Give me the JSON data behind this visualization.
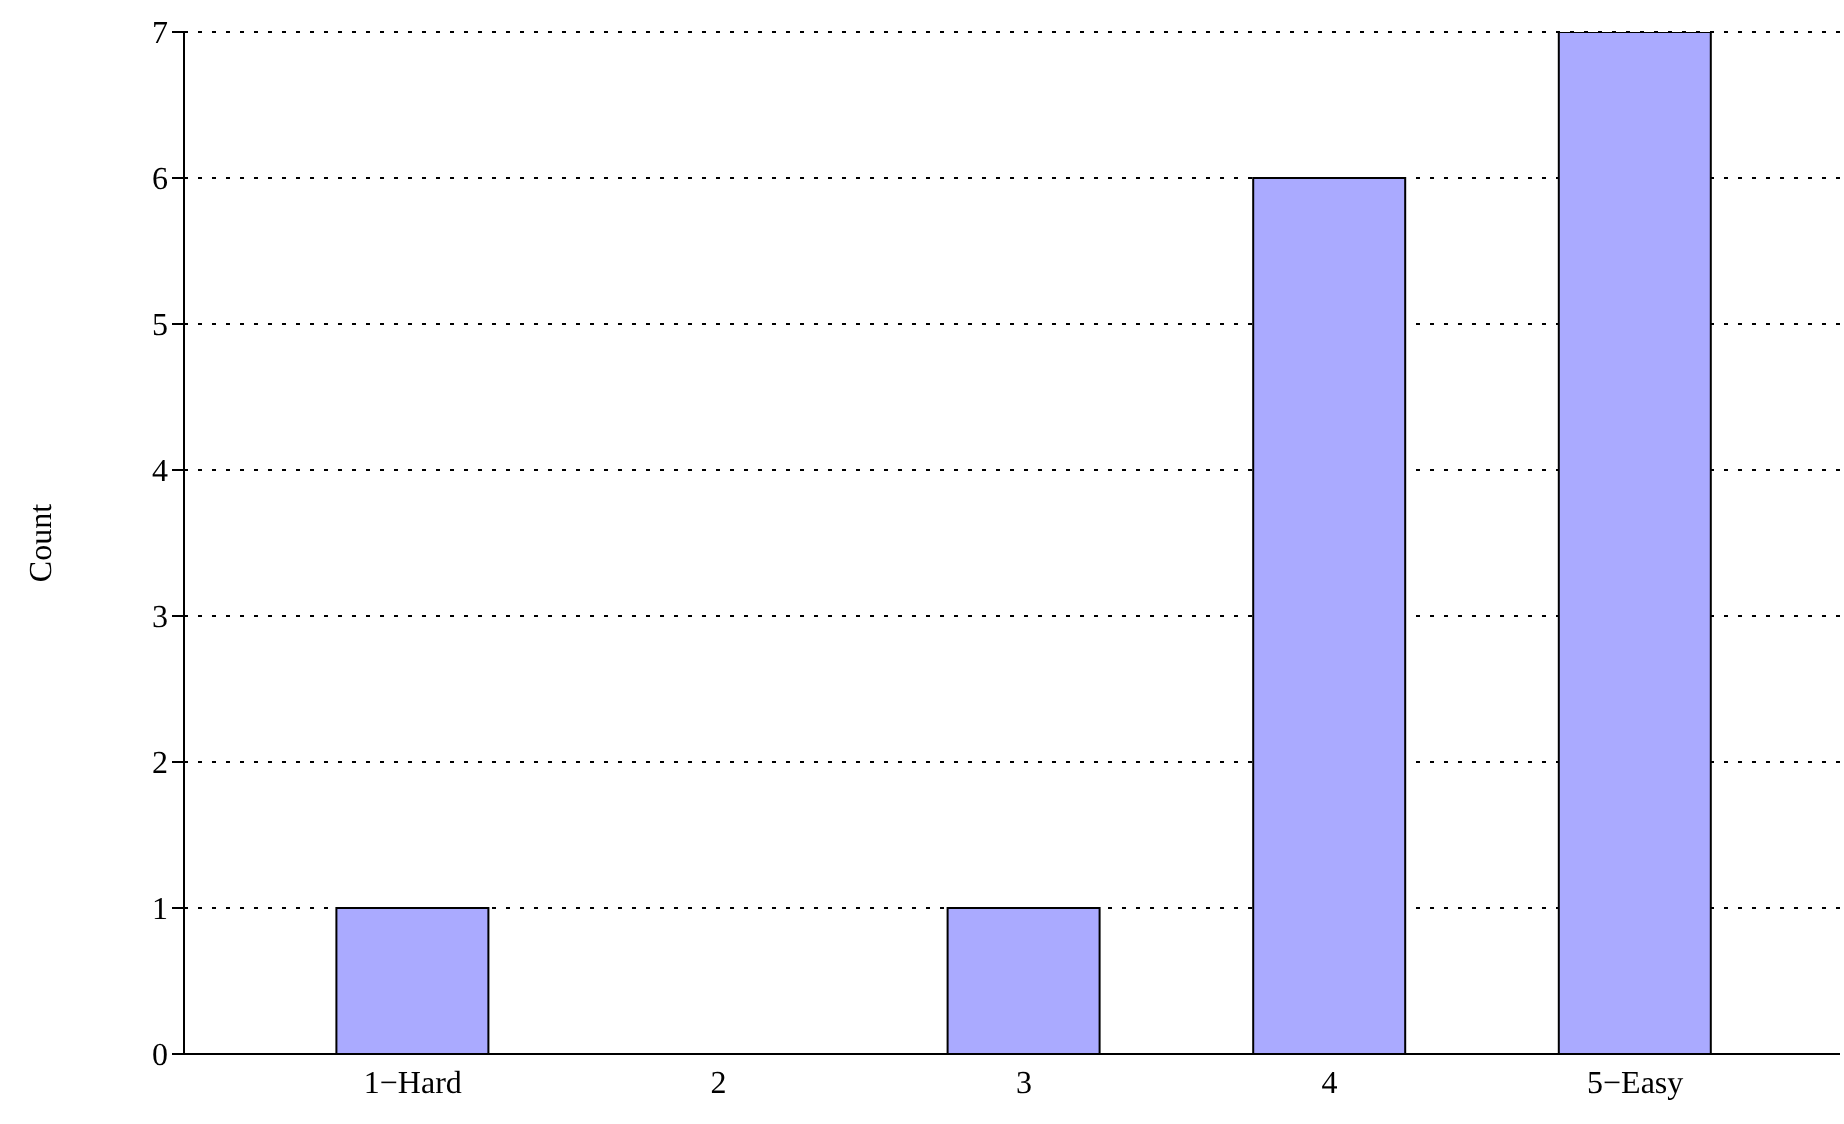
{
  "chart_data": {
    "type": "bar",
    "ylabel": "Count",
    "categories": [
      "1−Hard",
      "2",
      "3",
      "4",
      "5−Easy"
    ],
    "values": [
      1,
      0,
      1,
      6,
      7
    ],
    "color": "#aaaaff",
    "ylim": [
      0,
      7
    ],
    "yticks": [
      0,
      1,
      2,
      3,
      4,
      5,
      6,
      7
    ],
    "grid": "y"
  }
}
